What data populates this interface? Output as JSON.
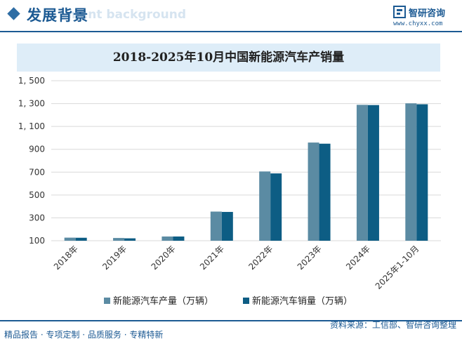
{
  "header": {
    "title": "发展背景",
    "title_bg": "ment background",
    "brand_name": "智研咨询",
    "brand_url": "www.chyxx.com"
  },
  "chart_data": {
    "type": "bar",
    "title": "2018-2025年10月中国新能源汽车产销量",
    "categories": [
      "2018年",
      "2019年",
      "2020年",
      "2021年",
      "2022年",
      "2023年",
      "2024年",
      "2025年1-10月"
    ],
    "series": [
      {
        "name": "新能源汽车产量（万辆）",
        "values": [
          127,
          124,
          137,
          355,
          706,
          959,
          1289,
          1302
        ],
        "color": "#5b8ba3"
      },
      {
        "name": "新能源汽车销量（万辆）",
        "values": [
          126,
          121,
          137,
          352,
          689,
          949,
          1287,
          1294
        ],
        "color": "#0d5d84"
      }
    ],
    "y_ticks": [
      "1, 500",
      "1, 300",
      "1, 100",
      "900",
      "700",
      "500",
      "300",
      "100"
    ],
    "ylim": [
      100,
      1500
    ],
    "grid": true,
    "legend_position": "bottom"
  },
  "footer": {
    "left": "精品报告 · 专项定制 · 品质服务 · 专精特新",
    "right": "资料来源：工信部、智研咨询整理"
  }
}
